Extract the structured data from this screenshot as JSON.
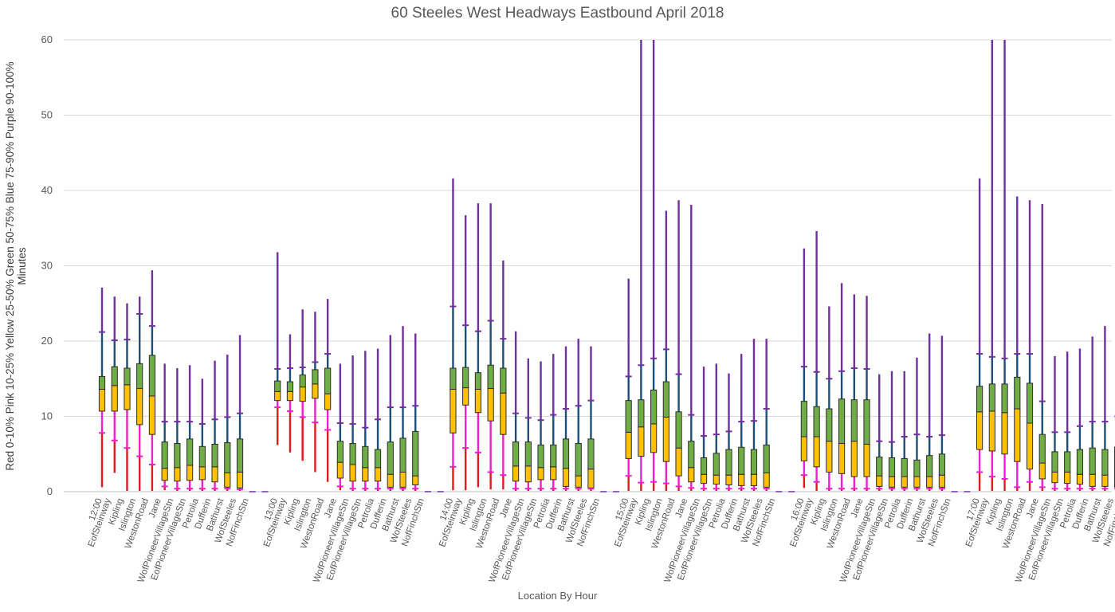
{
  "chart_data": {
    "type": "box",
    "title": "60 Steeles West Headways Eastbound April 2018",
    "xlabel": "Location By Hour",
    "ylabel": "Red 0-10%  Pink 10-25%  Yellow 25-50%  Green 50-75%  Blue 75-90%  Purple 90-100%",
    "ylabel_secondary": "Minutes",
    "ylim": [
      0,
      60
    ],
    "yticks": [
      "0",
      "10",
      "20",
      "30",
      "40",
      "50",
      "60"
    ],
    "grid": true,
    "colors": {
      "red": "#e31a1c",
      "pink": "#f01fd0",
      "yellow": "#ffc000",
      "green": "#70ad47",
      "blue": "#1f4e79",
      "purple": "#7030a0",
      "box_border": "#2d2d2d"
    },
    "percentile_columns": [
      "p0",
      "p10",
      "p25",
      "p50",
      "p75",
      "p90",
      "p100"
    ],
    "groups": [
      {
        "hour": "12:00",
        "stops": [
          {
            "name": "EofSteinway",
            "p": [
              0.6,
              7.8,
              10.7,
              13.6,
              15.3,
              21.2,
              27.1
            ]
          },
          {
            "name": "Kipling",
            "p": [
              2.5,
              6.8,
              10.7,
              14.1,
              16.6,
              20.1,
              25.9
            ]
          },
          {
            "name": "Islington",
            "p": [
              0.1,
              5.8,
              10.9,
              14.2,
              16.4,
              20.2,
              25.0
            ]
          },
          {
            "name": "WestonRoad",
            "p": [
              0.1,
              4.7,
              8.9,
              13.7,
              17.0,
              23.6,
              25.9
            ]
          },
          {
            "name": "Jane",
            "p": [
              0.1,
              3.6,
              7.6,
              12.7,
              18.1,
              22.0,
              29.4
            ]
          },
          {
            "name": "WofPioneerVillageStn",
            "p": [
              0.2,
              0.7,
              1.5,
              3.1,
              6.6,
              9.3,
              17.0
            ]
          },
          {
            "name": "EofPioneerVillageStn",
            "p": [
              0.1,
              0.4,
              1.4,
              3.2,
              6.4,
              9.3,
              16.4
            ]
          },
          {
            "name": "Petrolia",
            "p": [
              0.1,
              0.4,
              1.5,
              3.5,
              7.0,
              9.3,
              16.8
            ]
          },
          {
            "name": "Dufferin",
            "p": [
              0.1,
              0.4,
              1.6,
              3.3,
              6.0,
              9.0,
              15.0
            ]
          },
          {
            "name": "Bathurst",
            "p": [
              0.1,
              0.4,
              1.3,
              3.3,
              6.3,
              9.6,
              17.4
            ]
          },
          {
            "name": "WofSteeles",
            "p": [
              0.1,
              0.4,
              0.6,
              2.5,
              6.5,
              9.9,
              18.2
            ]
          },
          {
            "name": "NofFinchStn",
            "p": [
              0.1,
              0.3,
              0.5,
              2.6,
              7.0,
              10.4,
              20.8
            ]
          },
          {
            "name": "",
            "p": null
          },
          {
            "name": "",
            "p": null
          }
        ]
      },
      {
        "hour": "13:00",
        "stops": [
          {
            "name": "EofSteinway",
            "p": [
              6.2,
              11.2,
              12.1,
              13.3,
              14.7,
              16.3,
              31.8
            ]
          },
          {
            "name": "Kipling",
            "p": [
              5.2,
              10.7,
              12.1,
              13.3,
              14.6,
              16.4,
              20.9
            ]
          },
          {
            "name": "Islington",
            "p": [
              4.1,
              9.9,
              12.0,
              13.9,
              15.5,
              16.5,
              24.2
            ]
          },
          {
            "name": "WestonRoad",
            "p": [
              2.6,
              9.2,
              12.4,
              14.3,
              16.2,
              17.2,
              23.9
            ]
          },
          {
            "name": "Jane",
            "p": [
              1.3,
              8.2,
              10.9,
              13.0,
              16.4,
              18.3,
              25.6
            ]
          },
          {
            "name": "WofPioneerVillageStn",
            "p": [
              0.2,
              0.7,
              1.8,
              3.9,
              6.7,
              9.1,
              17.0
            ]
          },
          {
            "name": "EofPioneerVillageStn",
            "p": [
              0.1,
              0.4,
              1.4,
              3.6,
              6.4,
              9.0,
              18.1
            ]
          },
          {
            "name": "Petrolia",
            "p": [
              0.1,
              0.4,
              1.4,
              3.2,
              6.0,
              8.5,
              18.7
            ]
          },
          {
            "name": "Dufferin",
            "p": [
              0.1,
              0.4,
              1.4,
              3.2,
              5.6,
              9.6,
              19.0
            ]
          },
          {
            "name": "Bathurst",
            "p": [
              0.1,
              0.4,
              0.6,
              2.3,
              6.6,
              11.2,
              20.8
            ]
          },
          {
            "name": "WofSteeles",
            "p": [
              0.1,
              0.4,
              0.6,
              2.6,
              7.1,
              11.2,
              22.0
            ]
          },
          {
            "name": "NofFinchStn",
            "p": [
              0.1,
              0.4,
              0.9,
              2.1,
              8.0,
              11.4,
              21.0
            ]
          },
          {
            "name": "",
            "p": null
          },
          {
            "name": "",
            "p": null
          }
        ]
      },
      {
        "hour": "14:00",
        "stops": [
          {
            "name": "EofSteinway",
            "p": [
              0.2,
              3.3,
              7.8,
              13.6,
              16.4,
              24.6,
              41.6
            ]
          },
          {
            "name": "Kipling",
            "p": [
              0.2,
              5.8,
              11.5,
              13.8,
              16.5,
              22.1,
              36.7
            ]
          },
          {
            "name": "Islington",
            "p": [
              0.6,
              5.2,
              10.5,
              13.6,
              15.8,
              21.3,
              38.3
            ]
          },
          {
            "name": "WestonRoad",
            "p": [
              0.3,
              2.6,
              9.4,
              13.7,
              16.8,
              22.7,
              38.3
            ]
          },
          {
            "name": "Jane",
            "p": [
              0.3,
              2.2,
              7.6,
              13.1,
              16.4,
              20.3,
              30.7
            ]
          },
          {
            "name": "WofPioneerVillageStn",
            "p": [
              0.1,
              0.4,
              1.4,
              3.4,
              6.6,
              10.4,
              21.3
            ]
          },
          {
            "name": "EofPioneerVillageStn",
            "p": [
              0.1,
              0.4,
              1.3,
              3.4,
              6.6,
              9.8,
              17.7
            ]
          },
          {
            "name": "Petrolia",
            "p": [
              0.1,
              0.4,
              1.6,
              3.2,
              6.2,
              9.5,
              17.3
            ]
          },
          {
            "name": "Dufferin",
            "p": [
              0.1,
              0.4,
              1.6,
              3.3,
              6.2,
              10.2,
              18.3
            ]
          },
          {
            "name": "Bathurst",
            "p": [
              0.1,
              0.4,
              0.7,
              3.1,
              7.0,
              11.0,
              19.3
            ]
          },
          {
            "name": "WofSteeles",
            "p": [
              0.1,
              0.4,
              0.6,
              2.1,
              6.4,
              11.4,
              20.3
            ]
          },
          {
            "name": "NofFinchStn",
            "p": [
              0.1,
              0.4,
              0.5,
              3.0,
              7.0,
              12.1,
              19.3
            ]
          },
          {
            "name": "",
            "p": null
          },
          {
            "name": "",
            "p": null
          }
        ]
      },
      {
        "hour": "15:00",
        "stops": [
          {
            "name": "EofSteinway",
            "p": [
              0.1,
              2.1,
              4.4,
              7.9,
              12.1,
              15.3,
              28.3
            ]
          },
          {
            "name": "Kipling",
            "p": [
              0.1,
              1.2,
              4.7,
              8.6,
              12.2,
              16.8,
              60.0
            ]
          },
          {
            "name": "Islington",
            "p": [
              0.1,
              1.3,
              5.2,
              9.0,
              13.5,
              17.7,
              60.0
            ]
          },
          {
            "name": "WestonRoad",
            "p": [
              0.1,
              1.1,
              4.0,
              9.9,
              14.6,
              18.9,
              37.3
            ]
          },
          {
            "name": "Jane",
            "p": [
              0.1,
              0.7,
              2.1,
              5.8,
              10.6,
              15.6,
              38.7
            ]
          },
          {
            "name": "WofPioneerVillageStn",
            "p": [
              0.1,
              0.5,
              1.3,
              3.2,
              6.7,
              10.2,
              38.1
            ]
          },
          {
            "name": "EofPioneerVillageStn",
            "p": [
              0.1,
              0.4,
              1.1,
              2.3,
              4.5,
              7.4,
              16.6
            ]
          },
          {
            "name": "Petrolia",
            "p": [
              0.1,
              0.4,
              1.0,
              2.2,
              5.1,
              7.6,
              17.0
            ]
          },
          {
            "name": "Dufferin",
            "p": [
              0.1,
              0.4,
              0.9,
              2.2,
              5.6,
              8.0,
              15.7
            ]
          },
          {
            "name": "Bathurst",
            "p": [
              0.1,
              0.4,
              0.8,
              2.3,
              5.9,
              9.3,
              18.3
            ]
          },
          {
            "name": "WofSteeles",
            "p": [
              0.1,
              0.4,
              0.8,
              2.3,
              5.6,
              9.4,
              20.3
            ]
          },
          {
            "name": "NofFinchStn",
            "p": [
              0.1,
              0.4,
              0.6,
              2.5,
              6.2,
              11.0,
              20.3
            ]
          },
          {
            "name": "",
            "p": null
          },
          {
            "name": "",
            "p": null
          }
        ]
      },
      {
        "hour": "16:00",
        "stops": [
          {
            "name": "EofSteinway",
            "p": [
              0.5,
              2.2,
              4.1,
              7.3,
              12.0,
              16.6,
              32.3
            ]
          },
          {
            "name": "Kipling",
            "p": [
              0.1,
              1.3,
              3.3,
              7.3,
              11.3,
              15.9,
              34.6
            ]
          },
          {
            "name": "Islington",
            "p": [
              0.1,
              0.4,
              2.6,
              6.7,
              11.0,
              15.0,
              24.6
            ]
          },
          {
            "name": "WestonRoad",
            "p": [
              0.1,
              0.4,
              2.4,
              6.4,
              12.3,
              16.0,
              27.7
            ]
          },
          {
            "name": "Jane",
            "p": [
              0.1,
              0.4,
              2.0,
              6.7,
              12.2,
              16.4,
              26.2
            ]
          },
          {
            "name": "WofPioneerVillageStn",
            "p": [
              0.1,
              0.4,
              2.0,
              6.3,
              12.2,
              16.3,
              26.0
            ]
          },
          {
            "name": "EofPioneerVillageStn",
            "p": [
              0.1,
              0.4,
              0.7,
              2.1,
              4.6,
              6.7,
              15.6
            ]
          },
          {
            "name": "Petrolia",
            "p": [
              0.1,
              0.4,
              0.6,
              2.0,
              4.5,
              6.6,
              16.0
            ]
          },
          {
            "name": "Dufferin",
            "p": [
              0.1,
              0.4,
              0.6,
              2.0,
              4.4,
              7.3,
              16.0
            ]
          },
          {
            "name": "Bathurst",
            "p": [
              0.1,
              0.4,
              0.6,
              2.0,
              4.2,
              7.6,
              17.8
            ]
          },
          {
            "name": "WofSteeles",
            "p": [
              0.1,
              0.4,
              0.6,
              2.0,
              4.8,
              7.3,
              21.0
            ]
          },
          {
            "name": "NofFinchStn",
            "p": [
              0.1,
              0.4,
              0.6,
              2.2,
              5.0,
              7.5,
              20.7
            ]
          },
          {
            "name": "",
            "p": null
          },
          {
            "name": "",
            "p": null
          }
        ]
      },
      {
        "hour": "17:00",
        "stops": [
          {
            "name": "EofSteinway",
            "p": [
              0.1,
              2.6,
              5.6,
              10.6,
              14.0,
              18.3,
              41.6
            ]
          },
          {
            "name": "Kipling",
            "p": [
              0.1,
              2.0,
              5.4,
              10.7,
              14.3,
              17.9,
              60.0
            ]
          },
          {
            "name": "Islington",
            "p": [
              0.1,
              1.7,
              5.0,
              10.5,
              14.3,
              17.7,
              60.0
            ]
          },
          {
            "name": "WestonRoad",
            "p": [
              0.1,
              0.6,
              4.0,
              11.0,
              15.2,
              18.3,
              39.2
            ]
          },
          {
            "name": "Jane",
            "p": [
              0.1,
              1.3,
              3.0,
              9.1,
              14.4,
              18.3,
              38.7
            ]
          },
          {
            "name": "WofPioneerVillageStn",
            "p": [
              0.1,
              0.6,
              1.7,
              3.8,
              7.6,
              12.0,
              38.2
            ]
          },
          {
            "name": "EofPioneerVillageStn",
            "p": [
              0.1,
              0.4,
              1.2,
              2.6,
              5.3,
              7.9,
              18.0
            ]
          },
          {
            "name": "Petrolia",
            "p": [
              0.1,
              0.4,
              1.1,
              2.6,
              5.3,
              7.9,
              18.6
            ]
          },
          {
            "name": "Dufferin",
            "p": [
              0.1,
              0.4,
              1.0,
              2.3,
              5.6,
              8.7,
              19.0
            ]
          },
          {
            "name": "Bathurst",
            "p": [
              0.1,
              0.4,
              0.7,
              2.3,
              5.8,
              9.3,
              20.6
            ]
          },
          {
            "name": "WofSteeles",
            "p": [
              0.1,
              0.4,
              0.7,
              2.2,
              5.6,
              9.3,
              22.0
            ]
          },
          {
            "name": "NofFinchStn",
            "p": [
              0.1,
              0.4,
              0.6,
              2.1,
              5.9,
              10.0,
              21.0
            ]
          },
          {
            "name": "",
            "p": null
          },
          {
            "name": "",
            "p": null
          }
        ]
      }
    ]
  }
}
